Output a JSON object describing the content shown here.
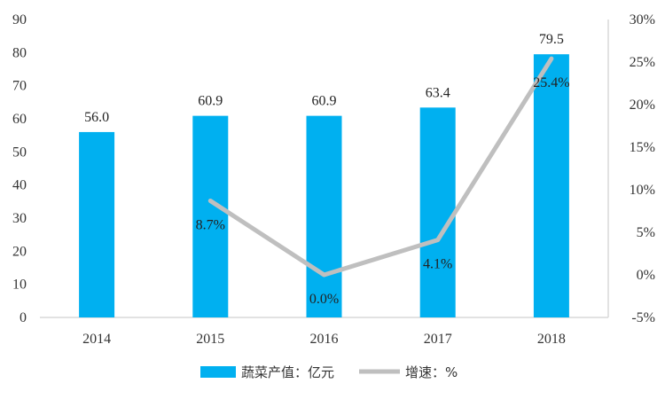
{
  "chart_data": {
    "type": "bar+line",
    "title": "",
    "categories": [
      "2014",
      "2015",
      "2016",
      "2017",
      "2018"
    ],
    "series": [
      {
        "name": "蔬菜产值：亿元",
        "type": "bar",
        "axis": "left",
        "values": [
          56.0,
          60.9,
          60.9,
          63.4,
          79.5
        ],
        "labels": [
          "56.0",
          "60.9",
          "60.9",
          "63.4",
          "79.5"
        ],
        "color": "#00B0F0"
      },
      {
        "name": "增速：%",
        "type": "line",
        "axis": "right",
        "values": [
          null,
          8.7,
          0.0,
          4.1,
          25.4
        ],
        "labels": [
          "",
          "8.7%",
          "0.0%",
          "4.1%",
          "25.4%"
        ],
        "color": "#BFBFBF"
      }
    ],
    "y_left": {
      "range": [
        0,
        90
      ],
      "ticks": [
        0,
        10,
        20,
        30,
        40,
        50,
        60,
        70,
        80,
        90
      ],
      "tick_labels": [
        "0",
        "10",
        "20",
        "30",
        "40",
        "50",
        "60",
        "70",
        "80",
        "90"
      ]
    },
    "y_right": {
      "range": [
        -5,
        30
      ],
      "ticks": [
        -5,
        0,
        5,
        10,
        15,
        20,
        25,
        30
      ],
      "tick_labels": [
        "-5%",
        "0%",
        "5%",
        "10%",
        "15%",
        "20%",
        "25%",
        "30%"
      ]
    },
    "grid": false,
    "legend_position": "bottom",
    "axis_color": "#D9D9D9"
  }
}
